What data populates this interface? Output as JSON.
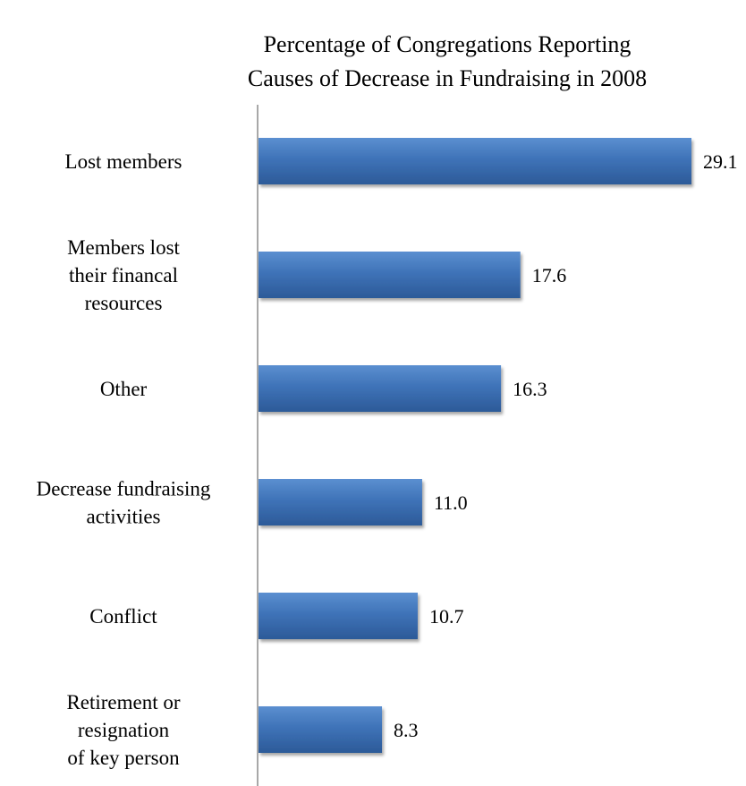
{
  "chart_data": {
    "type": "bar",
    "orientation": "horizontal",
    "title_lines": [
      "Percentage of Congregations Reporting",
      "Causes of Decrease in Fundraising in 2008"
    ],
    "categories": [
      [
        "Lost members"
      ],
      [
        "Members lost",
        "their financal",
        "resources"
      ],
      [
        "Other"
      ],
      [
        "Decrease fundraising",
        "activities"
      ],
      [
        "Conflict"
      ],
      [
        "Retirement or",
        "resignation",
        "of key person"
      ]
    ],
    "values": [
      29.1,
      17.6,
      16.3,
      11.0,
      10.7,
      8.3
    ],
    "value_labels": [
      "29.1",
      "17.6",
      "16.3",
      "11.0",
      "10.7",
      "8.3"
    ],
    "xlim": [
      0,
      30
    ],
    "grid": false,
    "legend": "none",
    "bar_color": "#3f73b8",
    "bar_color_light": "#5b8fd0",
    "bar_color_dark": "#2c5a98",
    "axis_color": "#8c8c8c"
  }
}
